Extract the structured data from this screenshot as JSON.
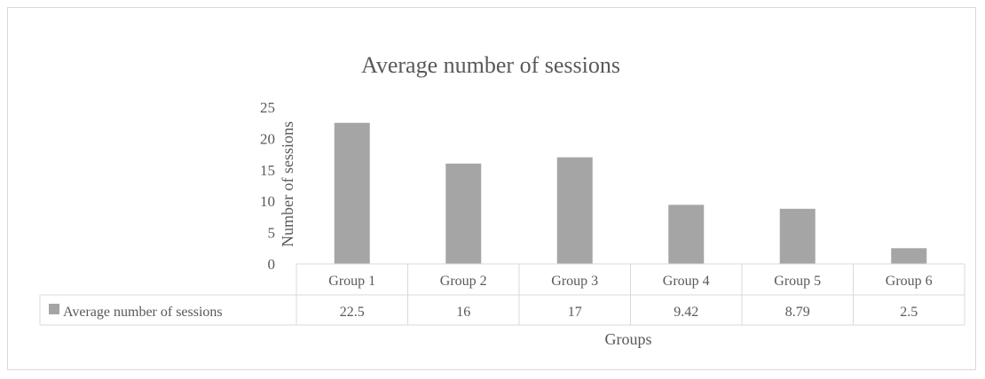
{
  "chart_data": {
    "type": "bar",
    "title": "Average number of sessions",
    "xlabel": "Groups",
    "ylabel": "Number of sessions",
    "ylim": [
      0,
      25
    ],
    "yticks": [
      0,
      5,
      10,
      15,
      20,
      25
    ],
    "yticks_label": [
      "0",
      "5",
      "10",
      "15",
      "20",
      "25"
    ],
    "categories": [
      "Group 1",
      "Group 2",
      "Group 3",
      "Group 4",
      "Group 5",
      "Group 6"
    ],
    "series": [
      {
        "name": "Average number of sessions",
        "values": [
          22.5,
          16,
          17,
          9.42,
          8.79,
          2.5
        ],
        "value_labels": [
          "22.5",
          "16",
          "17",
          "9.42",
          "8.79",
          "2.5"
        ]
      }
    ],
    "data_table": true,
    "grid": false,
    "colors": {
      "bar": "#a5a5a5",
      "text": "#595959",
      "lines": "#d9d9d9"
    }
  }
}
